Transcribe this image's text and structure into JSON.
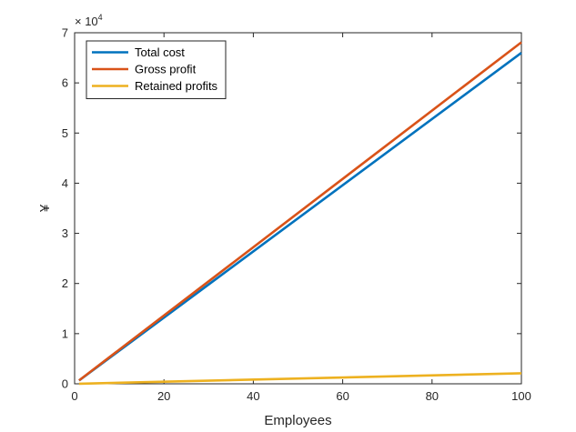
{
  "chart_data": {
    "type": "line",
    "title": "",
    "xlabel": "Employees",
    "ylabel": "¥",
    "exponent": {
      "base": "× 10",
      "power": "4"
    },
    "xlim": [
      0,
      100
    ],
    "ylim": [
      0,
      70000
    ],
    "x_ticks": [
      0,
      20,
      40,
      60,
      80,
      100
    ],
    "x_tick_labels": [
      "0",
      "20",
      "40",
      "60",
      "80",
      "100"
    ],
    "y_ticks": [
      0,
      10000,
      20000,
      30000,
      40000,
      50000,
      60000,
      70000
    ],
    "y_tick_labels": [
      "0",
      "1",
      "2",
      "3",
      "4",
      "5",
      "6",
      "7"
    ],
    "grid": false,
    "legend_position": "top-left",
    "series": [
      {
        "name": "Total cost",
        "color": "#0072BD",
        "x": [
          1,
          100
        ],
        "y": [
          660,
          66000
        ]
      },
      {
        "name": "Gross profit",
        "color": "#D95319",
        "x": [
          1,
          100
        ],
        "y": [
          680,
          68100
        ]
      },
      {
        "name": "Retained profits",
        "color": "#EDB120",
        "x": [
          1,
          100
        ],
        "y": [
          20,
          2100
        ]
      }
    ]
  }
}
